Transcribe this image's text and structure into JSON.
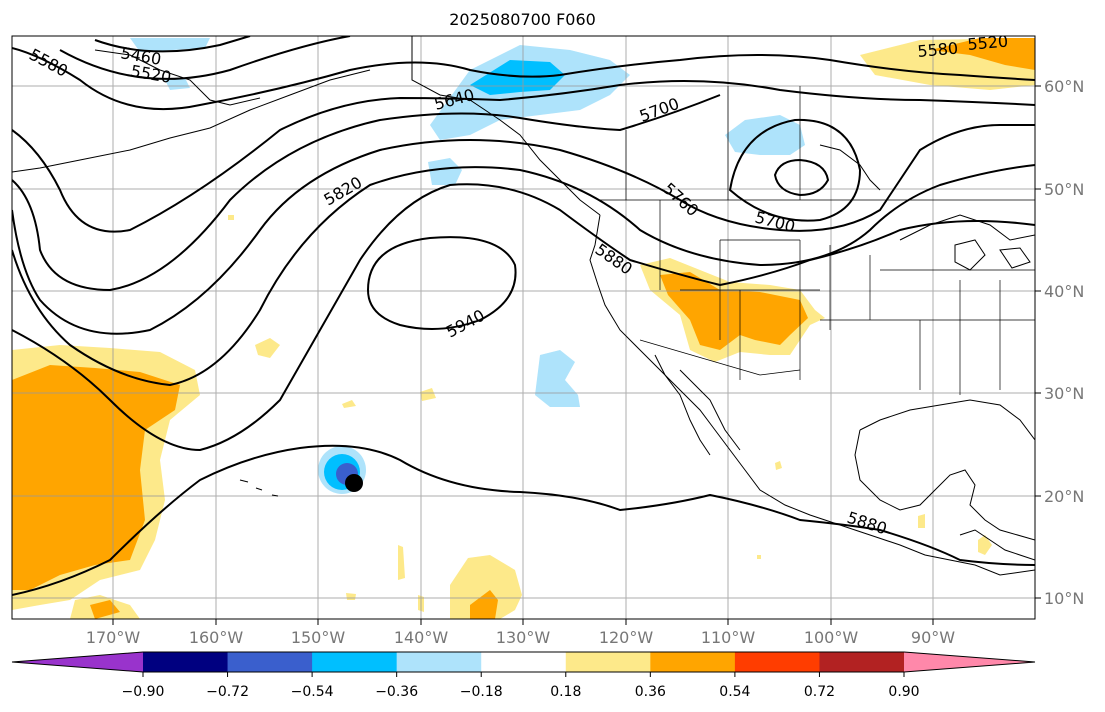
{
  "title": "2025080700 F060",
  "lat_labels": [
    "60°N",
    "50°N",
    "40°N",
    "30°N",
    "20°N",
    "10°N"
  ],
  "lon_labels": [
    "170°W",
    "160°W",
    "150°W",
    "140°W",
    "130°W",
    "120°W",
    "110°W",
    "100°W",
    "90°W"
  ],
  "colorbar": {
    "colors": [
      "#9933cc",
      "#000080",
      "#3a5fcd",
      "#00bfff",
      "#aee3fb",
      "#ffffff",
      "#fde98a",
      "#ffa500",
      "#ff3d00",
      "#b22222",
      "#ff88aa"
    ],
    "tick_labels": [
      "−0.90",
      "−0.72",
      "−0.54",
      "−0.36",
      "−0.18",
      "0.18",
      "0.36",
      "0.54",
      "0.72",
      "0.90"
    ]
  },
  "contour_labels": [
    "5460",
    "5520",
    "5580",
    "5580",
    "5520",
    "5640",
    "5700",
    "5700",
    "5760",
    "5820",
    "5880",
    "5940",
    "5880"
  ]
}
